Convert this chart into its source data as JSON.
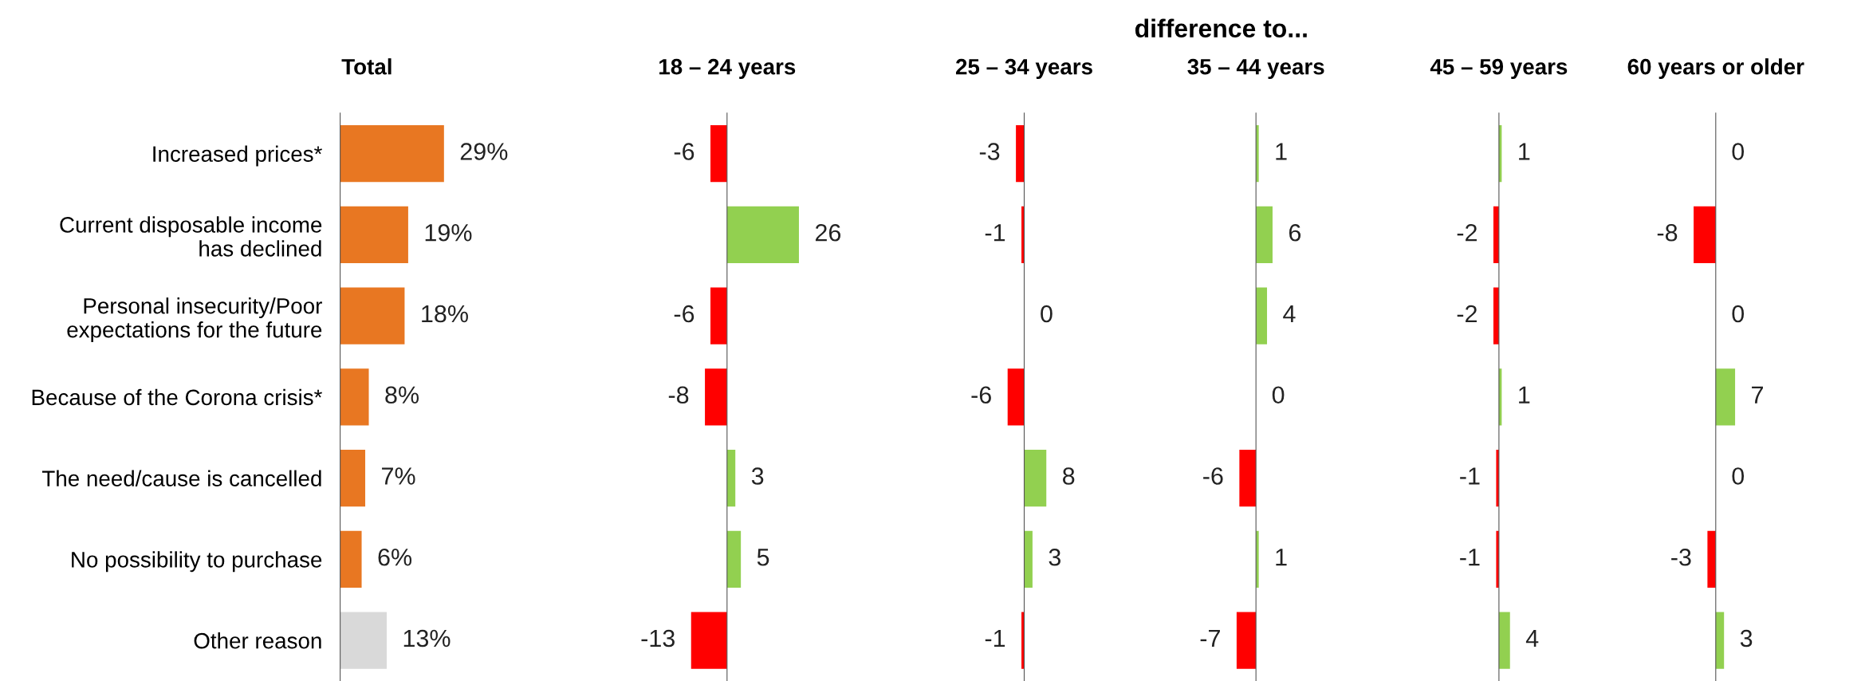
{
  "chart_data": [
    {
      "type": "bar",
      "orientation": "horizontal",
      "title": "Total",
      "tick_labels": "y",
      "categories": [
        "Increased prices*",
        "Current disposable income\nhas declined",
        "Personal insecurity/Poor\nexpectations for the future",
        "Because of the Corona crisis*",
        "The need/cause is cancelled",
        "No possibility to purchase",
        "Other reason"
      ],
      "values": [
        29,
        19,
        18,
        8,
        7,
        6,
        13
      ],
      "value_labels": [
        "29%",
        "19%",
        "18%",
        "8%",
        "7%",
        "6%",
        "13%"
      ],
      "colors": [
        "#e87722",
        "#e87722",
        "#e87722",
        "#e87722",
        "#e87722",
        "#e87722",
        "#d9d9d9"
      ]
    },
    {
      "type": "bar",
      "orientation": "horizontal",
      "title": "18 – 24 years",
      "tick_labels": false,
      "annotations": [
        "difference to..."
      ],
      "categories": [
        null,
        null,
        null,
        null,
        null,
        null,
        null
      ],
      "values": [
        -6,
        26,
        -6,
        -8,
        3,
        5,
        -13
      ],
      "data_labels": true,
      "colors": [
        "#ff0000",
        "#92d050",
        "#ff0000",
        "#ff0000",
        "#92d050",
        "#92d050",
        "#ff0000"
      ]
    },
    {
      "type": "bar",
      "orientation": "horizontal",
      "title": "25 – 34 years",
      "tick_labels": false,
      "categories": [
        null,
        null,
        null,
        null,
        null,
        null,
        null
      ],
      "values": [
        -3,
        -1,
        0,
        -6,
        8,
        3,
        -1
      ],
      "data_labels": true,
      "colors": [
        "#ff0000",
        "#ff0000",
        "#92d050",
        "#ff0000",
        "#92d050",
        "#92d050",
        "#ff0000"
      ]
    },
    {
      "type": "bar",
      "orientation": "horizontal",
      "title": "35 – 44 years",
      "tick_labels": false,
      "categories": [
        null,
        null,
        null,
        null,
        null,
        null,
        null
      ],
      "values": [
        1,
        6,
        4,
        0,
        -6,
        1,
        -7
      ],
      "data_labels": true,
      "colors": [
        "#92d050",
        "#92d050",
        "#92d050",
        "#92d050",
        "#ff0000",
        "#92d050",
        "#ff0000"
      ]
    },
    {
      "type": "bar",
      "orientation": "horizontal",
      "title": "45 – 59 years",
      "tick_labels": false,
      "categories": [
        null,
        null,
        null,
        null,
        null,
        null,
        null
      ],
      "values": [
        1,
        -2,
        -2,
        1,
        -1,
        -1,
        4
      ],
      "data_labels": true,
      "colors": [
        "#92d050",
        "#ff0000",
        "#ff0000",
        "#92d050",
        "#ff0000",
        "#ff0000",
        "#92d050"
      ]
    },
    {
      "type": "bar",
      "orientation": "horizontal",
      "title": "60 years or older",
      "tick_labels": false,
      "categories": [
        null,
        null,
        null,
        null,
        null,
        null,
        null
      ],
      "values": [
        0,
        -8,
        0,
        7,
        0,
        -3,
        3
      ],
      "data_labels": true,
      "colors": [
        "#92d050",
        "#ff0000",
        "#92d050",
        "#92d050",
        "#92d050",
        "#ff0000",
        "#92d050"
      ]
    }
  ]
}
